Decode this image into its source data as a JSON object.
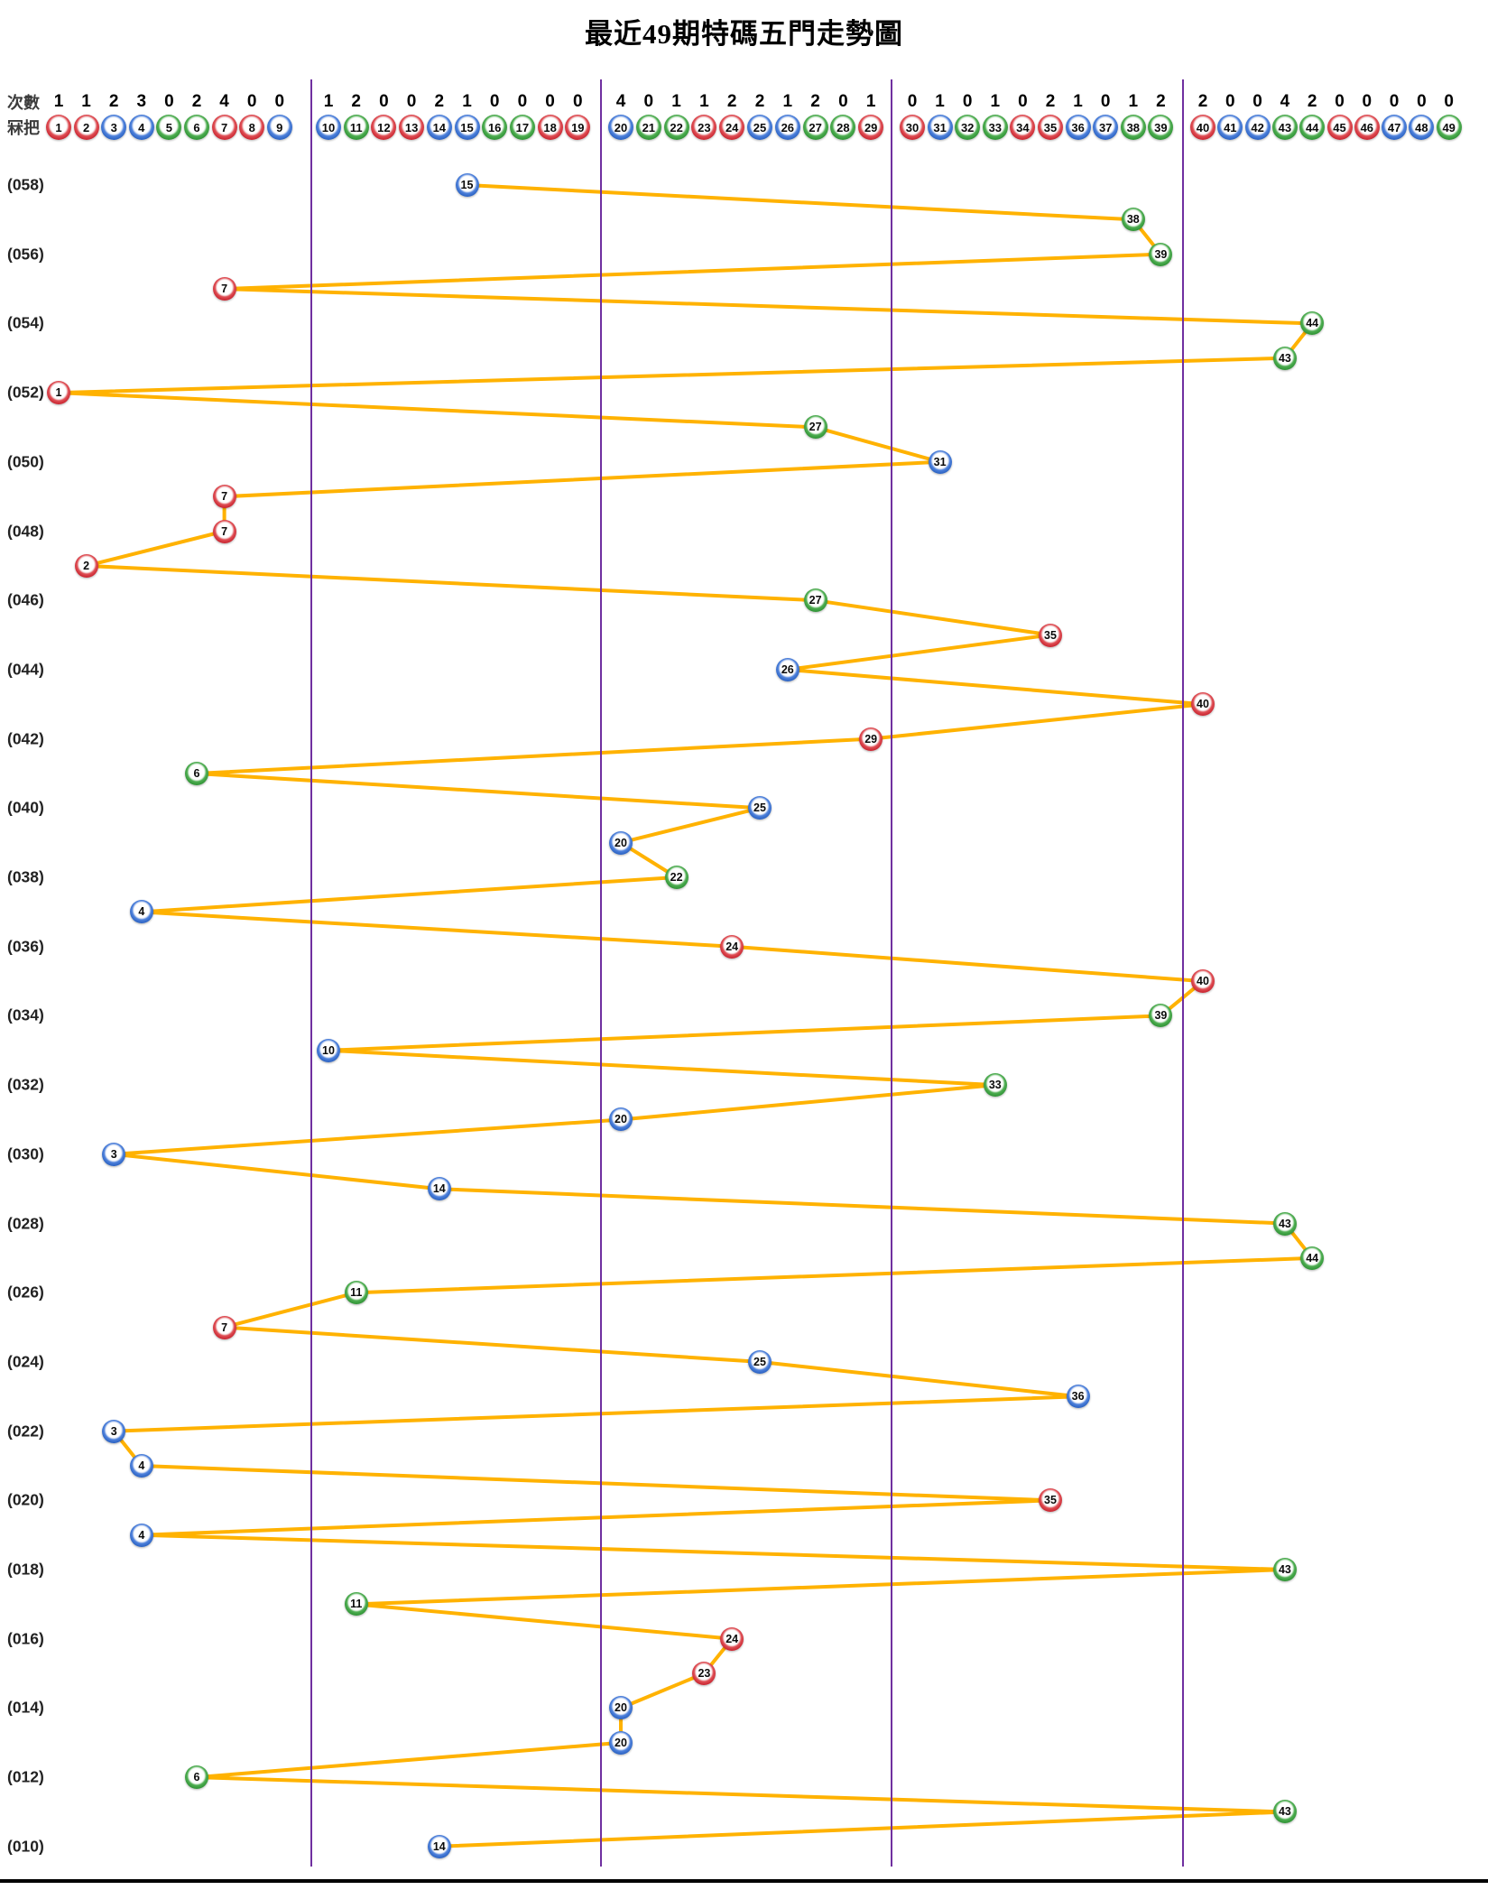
{
  "title": "最近49期特碼五門走勢圖",
  "header": {
    "counts_label": "次數",
    "numbers_label": "冧把",
    "ball_numbers": [
      1,
      2,
      3,
      4,
      5,
      6,
      7,
      8,
      9,
      10,
      11,
      12,
      13,
      14,
      15,
      16,
      17,
      18,
      19,
      20,
      21,
      22,
      23,
      24,
      25,
      26,
      27,
      28,
      29,
      30,
      31,
      32,
      33,
      34,
      35,
      36,
      37,
      38,
      39,
      40,
      41,
      42,
      43,
      44,
      45,
      46,
      47,
      48,
      49
    ],
    "counts": [
      1,
      1,
      2,
      3,
      0,
      2,
      4,
      0,
      0,
      1,
      2,
      0,
      0,
      2,
      1,
      0,
      0,
      0,
      0,
      4,
      0,
      1,
      1,
      2,
      2,
      1,
      2,
      0,
      1,
      0,
      1,
      0,
      1,
      0,
      2,
      1,
      0,
      1,
      2,
      2,
      0,
      0,
      4,
      2,
      0,
      0,
      0,
      0,
      0
    ]
  },
  "ball_colors": {
    "red": [
      1,
      2,
      7,
      8,
      12,
      13,
      18,
      19,
      23,
      24,
      29,
      30,
      34,
      35,
      40,
      45,
      46
    ],
    "blue": [
      3,
      4,
      9,
      10,
      14,
      15,
      20,
      25,
      26,
      31,
      36,
      37,
      41,
      42,
      47,
      48
    ],
    "green": [
      5,
      6,
      11,
      16,
      17,
      21,
      22,
      27,
      28,
      32,
      33,
      38,
      39,
      43,
      44,
      49
    ]
  },
  "colors": {
    "line": "#FFB200",
    "divider": "#7030A0",
    "red": "#C40E1E",
    "blue": "#1553B7",
    "green": "#1E921E",
    "background": "#FFFFFF",
    "bottom_border": "#000000"
  },
  "chart_data": {
    "type": "scatter",
    "title": "最近49期特碼五門走勢圖",
    "x_range": [
      1,
      49
    ],
    "group_dividers_after": [
      9,
      19,
      29,
      39
    ],
    "legend": "ball number drawn per period, connected in sequence",
    "rows": [
      {
        "label": "(058)",
        "ball": 15
      },
      {
        "label": "",
        "ball": 38
      },
      {
        "label": "(056)",
        "ball": 39
      },
      {
        "label": "",
        "ball": 7
      },
      {
        "label": "(054)",
        "ball": 44
      },
      {
        "label": "",
        "ball": 43
      },
      {
        "label": "(052)",
        "ball": 1
      },
      {
        "label": "",
        "ball": 27
      },
      {
        "label": "(050)",
        "ball": 31
      },
      {
        "label": "",
        "ball": 7
      },
      {
        "label": "(048)",
        "ball": 7
      },
      {
        "label": "",
        "ball": 2
      },
      {
        "label": "(046)",
        "ball": 27
      },
      {
        "label": "",
        "ball": 35
      },
      {
        "label": "(044)",
        "ball": 26
      },
      {
        "label": "",
        "ball": 40
      },
      {
        "label": "(042)",
        "ball": 29
      },
      {
        "label": "",
        "ball": 6
      },
      {
        "label": "(040)",
        "ball": 25
      },
      {
        "label": "",
        "ball": 20
      },
      {
        "label": "(038)",
        "ball": 22
      },
      {
        "label": "",
        "ball": 4
      },
      {
        "label": "(036)",
        "ball": 24
      },
      {
        "label": "",
        "ball": 40
      },
      {
        "label": "(034)",
        "ball": 39
      },
      {
        "label": "",
        "ball": 10
      },
      {
        "label": "(032)",
        "ball": 33
      },
      {
        "label": "",
        "ball": 20
      },
      {
        "label": "(030)",
        "ball": 3
      },
      {
        "label": "",
        "ball": 14
      },
      {
        "label": "(028)",
        "ball": 43
      },
      {
        "label": "",
        "ball": 44
      },
      {
        "label": "(026)",
        "ball": 11
      },
      {
        "label": "",
        "ball": 7
      },
      {
        "label": "(024)",
        "ball": 25
      },
      {
        "label": "",
        "ball": 36
      },
      {
        "label": "(022)",
        "ball": 3
      },
      {
        "label": "",
        "ball": 4
      },
      {
        "label": "(020)",
        "ball": 35
      },
      {
        "label": "",
        "ball": 4
      },
      {
        "label": "(018)",
        "ball": 43
      },
      {
        "label": "",
        "ball": 11
      },
      {
        "label": "(016)",
        "ball": 24
      },
      {
        "label": "",
        "ball": 23
      },
      {
        "label": "(014)",
        "ball": 20
      },
      {
        "label": "",
        "ball": 20
      },
      {
        "label": "(012)",
        "ball": 6
      },
      {
        "label": "",
        "ball": 43
      },
      {
        "label": "(010)",
        "ball": 14
      }
    ]
  }
}
